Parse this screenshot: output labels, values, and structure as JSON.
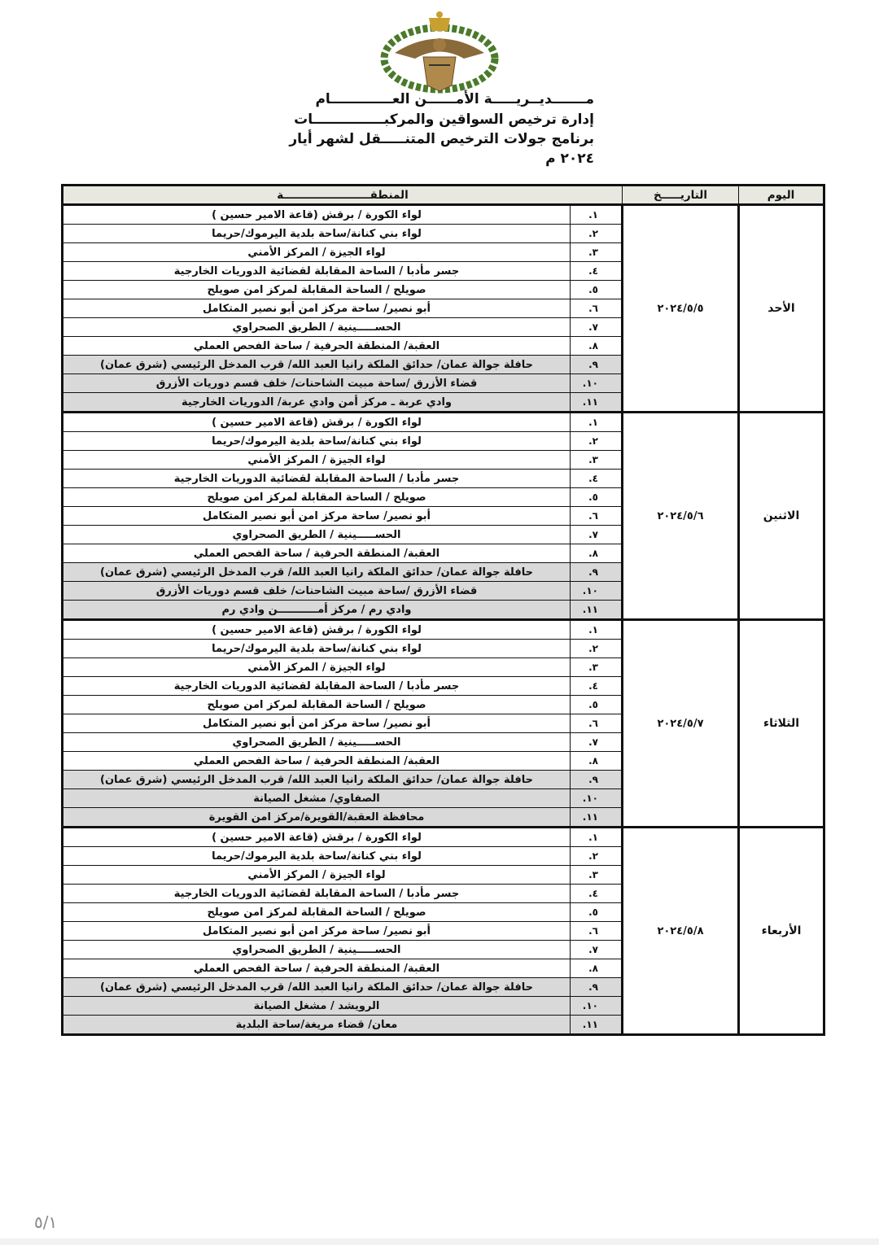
{
  "header": {
    "line1": "مـــــــديــريـــــة الأمــــــن العـــــــــــــام",
    "line2": "إدارة ترخيص السواقين والمركبـــــــــــــــات",
    "line3": "برنامج جولات الترخيص المتنـــــقل لشهر أيار ٢٠٢٤ م"
  },
  "table": {
    "headers": {
      "day": "اليوم",
      "date": "التاريـــــخ",
      "area": "المنطقـــــــــــــــــــــــة"
    },
    "days": [
      {
        "day": "الأحد",
        "date": "٢٠٢٤/٥/٥",
        "rows": [
          {
            "num": "١.",
            "text": "لواء الكورة / برقش (قاعة الامير حسين )"
          },
          {
            "num": "٢.",
            "text": "لواء بني كنانة/ساحة بلدية اليرموك/حريما"
          },
          {
            "num": "٣.",
            "text": "لواء الجيزة / المركز الأمني"
          },
          {
            "num": "٤.",
            "text": "جسر مأدبا / الساحة المقابلة لقضائية الدوريات الخارجية"
          },
          {
            "num": "٥.",
            "text": "صويلح / الساحة المقابلة لمركز امن صويلح"
          },
          {
            "num": "٦.",
            "text": "أبو نصير/ ساحة مركز امن أبو نصير المتكامل"
          },
          {
            "num": "٧.",
            "text": "الحســـــينية / الطريق الصحراوي"
          },
          {
            "num": "٨.",
            "text": "العقبة/ المنطقة الحرفية / ساحة الفحص العملي"
          },
          {
            "num": "٩.",
            "text": "حافلة جوالة عمان/ حدائق الملكة رانيا العبد الله/ قرب المدخل الرئيسي (شرق عمان)"
          },
          {
            "num": "١٠.",
            "text": "قضاء الأزرق /ساحة مبيت الشاحنات/ خلف قسم دوريات الأزرق"
          },
          {
            "num": "١١.",
            "text": "وادي عربة ـ مركز أمن وادي عربة/ الدوريات الخارجية"
          }
        ]
      },
      {
        "day": "الاثنين",
        "date": "٢٠٢٤/٥/٦",
        "rows": [
          {
            "num": "١.",
            "text": "لواء الكورة / برقش (قاعة الامير حسين )"
          },
          {
            "num": "٢.",
            "text": "لواء بني كنانة/ساحة بلدية اليرموك/حريما"
          },
          {
            "num": "٣.",
            "text": "لواء الجيزة / المركز الأمني"
          },
          {
            "num": "٤.",
            "text": "جسر مأدبا / الساحة المقابلة لقضائية الدوريات الخارجية"
          },
          {
            "num": "٥.",
            "text": "صويلح / الساحة المقابلة لمركز امن صويلح"
          },
          {
            "num": "٦.",
            "text": "أبو نصير/ ساحة مركز امن أبو نصير المتكامل"
          },
          {
            "num": "٧.",
            "text": "الحســـــينية / الطريق الصحراوي"
          },
          {
            "num": "٨.",
            "text": "العقبة/ المنطقة الحرفية / ساحة الفحص العملي"
          },
          {
            "num": "٩.",
            "text": "حافلة جوالة عمان/ حدائق الملكة رانيا العبد الله/ قرب المدخل الرئيسي (شرق عمان)"
          },
          {
            "num": "١٠.",
            "text": "قضاء الأزرق /ساحة مبيت الشاحنات/ خلف قسم دوريات الأزرق"
          },
          {
            "num": "١١.",
            "text": "وادي رم / مركز أمـــــــــــن وادي رم"
          }
        ]
      },
      {
        "day": "الثلاثاء",
        "date": "٢٠٢٤/٥/٧",
        "rows": [
          {
            "num": "١.",
            "text": "لواء الكورة / برقش (قاعة الامير حسين )"
          },
          {
            "num": "٢.",
            "text": "لواء بني كنانة/ساحة بلدية اليرموك/حريما"
          },
          {
            "num": "٣.",
            "text": "لواء الجيزة / المركز الأمني"
          },
          {
            "num": "٤.",
            "text": "جسر مأدبا / الساحة المقابلة لقضائية الدوريات الخارجية"
          },
          {
            "num": "٥.",
            "text": "صويلح / الساحة المقابلة لمركز امن صويلح"
          },
          {
            "num": "٦.",
            "text": "أبو نصير/ ساحة مركز امن أبو نصير المتكامل"
          },
          {
            "num": "٧.",
            "text": "الحســـــينية / الطريق الصحراوي"
          },
          {
            "num": "٨.",
            "text": "العقبة/ المنطقة الحرفية / ساحة الفحص العملي"
          },
          {
            "num": "٩.",
            "text": "حافلة جوالة عمان/ حدائق الملكة رانيا العبد الله/ قرب المدخل الرئيسي (شرق عمان)"
          },
          {
            "num": "١٠.",
            "text": "الصفاوي/ مشغل الصيانة"
          },
          {
            "num": "١١.",
            "text": "محافظة العقبة/القويرة/مركز امن القويرة"
          }
        ]
      },
      {
        "day": "الأربعاء",
        "date": "٢٠٢٤/٥/٨",
        "rows": [
          {
            "num": "١.",
            "text": "لواء الكورة / برقش (قاعة الامير حسين )"
          },
          {
            "num": "٢.",
            "text": "لواء بني كنانة/ساحة بلدية اليرموك/حريما"
          },
          {
            "num": "٣.",
            "text": "لواء الجيزة / المركز الأمني"
          },
          {
            "num": "٤.",
            "text": "جسر مأدبا / الساحة المقابلة لقضائية الدوريات الخارجية"
          },
          {
            "num": "٥.",
            "text": "صويلح / الساحة المقابلة لمركز امن صويلح"
          },
          {
            "num": "٦.",
            "text": "أبو نصير/ ساحة مركز امن أبو نصير المتكامل"
          },
          {
            "num": "٧.",
            "text": "الحســـــينية / الطريق الصحراوي"
          },
          {
            "num": "٨.",
            "text": "العقبة/ المنطقة الحرفية / ساحة الفحص العملي"
          },
          {
            "num": "٩.",
            "text": "حافلة جوالة عمان/ حدائق الملكة رانيا العبد الله/ قرب المدخل الرئيسي (شرق عمان)"
          },
          {
            "num": "١٠.",
            "text": "الرويشد / مشغل الصيانة"
          },
          {
            "num": "١١.",
            "text": "معان/ قضاء مريغة/ساحة البلدية"
          }
        ]
      }
    ]
  },
  "footer": {
    "page": "٥/١"
  }
}
